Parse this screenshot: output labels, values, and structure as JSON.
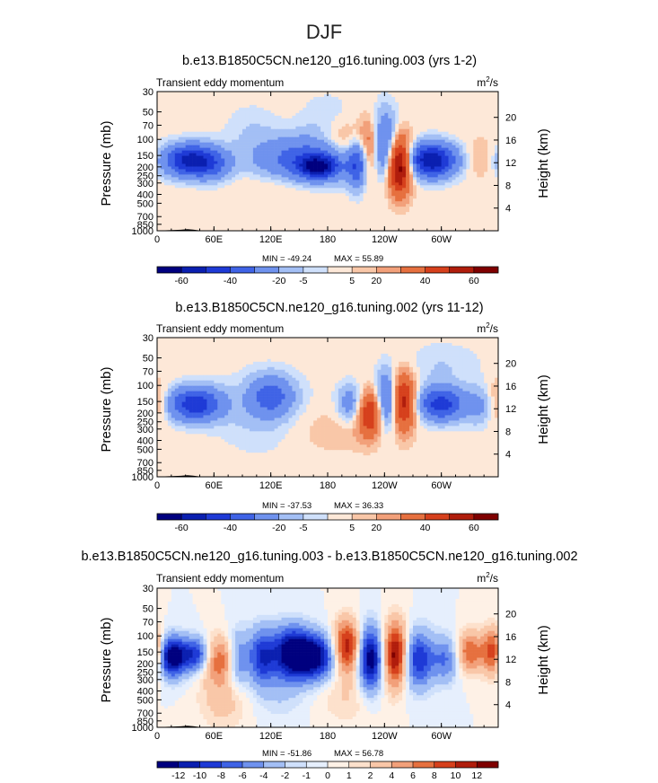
{
  "figure": {
    "title": "DJF"
  },
  "chart_data": [
    {
      "type": "heatmap",
      "title": "b.e13.B1850C5CN.ne120_g16.tuning.003 (yrs 1-2)",
      "subtitle_left": "Transient eddy momentum",
      "units_base": "m",
      "units_exp": "2",
      "units_rest": "/s",
      "ylabel": "Pressure (mb)",
      "ylabel_right": "Height (km)",
      "x_ticks": [
        "0",
        "60E",
        "120E",
        "180",
        "120W",
        "60W"
      ],
      "y_ticks": [
        "30",
        "50",
        "70",
        "100",
        "150",
        "200",
        "250",
        "300",
        "400",
        "500",
        "700",
        "850",
        "1000"
      ],
      "y_ticks_right": [
        "20",
        "16",
        "12",
        "8",
        "4"
      ],
      "min_label": "MIN = -49.24",
      "max_label": "MAX = 55.89",
      "min": -49.24,
      "max": 55.89,
      "levels": [
        "-60",
        "-40",
        "-20",
        "-5",
        "5",
        "20",
        "40",
        "60"
      ],
      "blobs": [
        {
          "lon": 35,
          "p": 170,
          "dlon": 20,
          "dlp": 0.28,
          "a": -45
        },
        {
          "lon": 60,
          "p": 200,
          "dlon": 14,
          "dlp": 0.3,
          "a": -12
        },
        {
          "lon": 160,
          "p": 170,
          "dlon": 42,
          "dlp": 0.42,
          "a": -28
        },
        {
          "lon": 170,
          "p": 200,
          "dlon": 14,
          "dlp": 0.2,
          "a": -38
        },
        {
          "lon": 198,
          "p": 110,
          "dlon": 18,
          "dlp": 0.4,
          "a": 14
        },
        {
          "lon": 212,
          "p": 180,
          "dlon": 7,
          "dlp": 0.45,
          "a": -28
        },
        {
          "lon": 225,
          "p": 140,
          "dlon": 9,
          "dlp": 0.55,
          "a": 24
        },
        {
          "lon": 240,
          "p": 120,
          "dlon": 10,
          "dlp": 0.6,
          "a": -30
        },
        {
          "lon": 255,
          "p": 190,
          "dlon": 9,
          "dlp": 0.5,
          "a": 56
        },
        {
          "lon": 290,
          "p": 170,
          "dlon": 18,
          "dlp": 0.3,
          "a": -49
        },
        {
          "lon": 342,
          "p": 160,
          "dlon": 10,
          "dlp": 0.35,
          "a": 7
        },
        {
          "lon": 130,
          "p": 300,
          "dlon": 40,
          "dlp": 0.35,
          "a": 5
        },
        {
          "lon": 180,
          "p": 60,
          "dlon": 20,
          "dlp": 0.45,
          "a": -5
        },
        {
          "lon": 100,
          "p": 70,
          "dlon": 20,
          "dlp": 0.4,
          "a": -4
        }
      ]
    },
    {
      "type": "heatmap",
      "title": "b.e13.B1850C5CN.ne120_g16.tuning.002 (yrs 11-12)",
      "subtitle_left": "Transient eddy momentum",
      "units_base": "m",
      "units_exp": "2",
      "units_rest": "/s",
      "ylabel": "Pressure (mb)",
      "ylabel_right": "Height (km)",
      "x_ticks": [
        "0",
        "60E",
        "120E",
        "180",
        "120W",
        "60W"
      ],
      "y_ticks": [
        "30",
        "50",
        "70",
        "100",
        "150",
        "200",
        "250",
        "300",
        "400",
        "500",
        "700",
        "850",
        "1000"
      ],
      "y_ticks_right": [
        "20",
        "16",
        "12",
        "8",
        "4"
      ],
      "min_label": "MIN = -37.53",
      "max_label": "MAX =  36.33",
      "min": -37.53,
      "max": 36.33,
      "levels": [
        "-60",
        "-40",
        "-20",
        "-5",
        "5",
        "20",
        "40",
        "60"
      ],
      "blobs": [
        {
          "lon": 40,
          "p": 160,
          "dlon": 20,
          "dlp": 0.3,
          "a": -37
        },
        {
          "lon": 120,
          "p": 130,
          "dlon": 16,
          "dlp": 0.35,
          "a": -22
        },
        {
          "lon": 115,
          "p": 200,
          "dlon": 35,
          "dlp": 0.7,
          "a": -7
        },
        {
          "lon": 205,
          "p": 160,
          "dlon": 10,
          "dlp": 0.35,
          "a": -18
        },
        {
          "lon": 225,
          "p": 200,
          "dlon": 10,
          "dlp": 0.4,
          "a": 32
        },
        {
          "lon": 242,
          "p": 150,
          "dlon": 8,
          "dlp": 0.5,
          "a": -30
        },
        {
          "lon": 260,
          "p": 150,
          "dlon": 9,
          "dlp": 0.5,
          "a": 36
        },
        {
          "lon": 300,
          "p": 160,
          "dlon": 18,
          "dlp": 0.3,
          "a": -35
        },
        {
          "lon": 340,
          "p": 170,
          "dlon": 10,
          "dlp": 0.35,
          "a": -10
        },
        {
          "lon": 0,
          "p": 150,
          "dlon": 8,
          "dlp": 0.4,
          "a": 10
        },
        {
          "lon": 180,
          "p": 300,
          "dlon": 40,
          "dlp": 0.45,
          "a": 5
        },
        {
          "lon": 300,
          "p": 60,
          "dlon": 30,
          "dlp": 0.4,
          "a": -5
        }
      ]
    },
    {
      "type": "heatmap",
      "title": "b.e13.B1850C5CN.ne120_g16.tuning.003 - b.e13.B1850C5CN.ne120_g16.tuning.002",
      "subtitle_left": "Transient eddy momentum",
      "units_base": "m",
      "units_exp": "2",
      "units_rest": "/s",
      "ylabel": "Pressure (mb)",
      "ylabel_right": "Height (km)",
      "x_ticks": [
        "0",
        "60E",
        "120E",
        "180",
        "120W",
        "60W"
      ],
      "y_ticks": [
        "30",
        "50",
        "70",
        "100",
        "150",
        "200",
        "250",
        "300",
        "400",
        "500",
        "700",
        "850",
        "1000"
      ],
      "y_ticks_right": [
        "20",
        "16",
        "12",
        "8",
        "4"
      ],
      "min_label": "MIN = -51.86",
      "max_label": "MAX =  56.78",
      "min": -51.86,
      "max": 56.78,
      "levels": [
        "-12",
        "-10",
        "-8",
        "-6",
        "-4",
        "-2",
        "-1",
        "0",
        "1",
        "2",
        "4",
        "6",
        "8",
        "10",
        "12"
      ],
      "blobs": [
        {
          "lon": 15,
          "p": 170,
          "dlon": 10,
          "dlp": 0.35,
          "a": -14
        },
        {
          "lon": 40,
          "p": 160,
          "dlon": 12,
          "dlp": 0.3,
          "a": -10
        },
        {
          "lon": 65,
          "p": 180,
          "dlon": 12,
          "dlp": 0.4,
          "a": 8
        },
        {
          "lon": 85,
          "p": 180,
          "dlon": 8,
          "dlp": 0.5,
          "a": -6
        },
        {
          "lon": 110,
          "p": 170,
          "dlon": 10,
          "dlp": 0.5,
          "a": -9
        },
        {
          "lon": 140,
          "p": 150,
          "dlon": 14,
          "dlp": 0.45,
          "a": -12
        },
        {
          "lon": 165,
          "p": 170,
          "dlon": 16,
          "dlp": 0.4,
          "a": -14
        },
        {
          "lon": 200,
          "p": 130,
          "dlon": 10,
          "dlp": 0.45,
          "a": 12
        },
        {
          "lon": 225,
          "p": 180,
          "dlon": 9,
          "dlp": 0.55,
          "a": -14
        },
        {
          "lon": 252,
          "p": 160,
          "dlon": 9,
          "dlp": 0.55,
          "a": 14
        },
        {
          "lon": 275,
          "p": 180,
          "dlon": 12,
          "dlp": 0.5,
          "a": -10
        },
        {
          "lon": 305,
          "p": 180,
          "dlon": 10,
          "dlp": 0.4,
          "a": -6
        },
        {
          "lon": 330,
          "p": 150,
          "dlon": 10,
          "dlp": 0.35,
          "a": 8
        },
        {
          "lon": 355,
          "p": 150,
          "dlon": 8,
          "dlp": 0.4,
          "a": 10
        },
        {
          "lon": 70,
          "p": 500,
          "dlon": 18,
          "dlp": 0.5,
          "a": 3
        },
        {
          "lon": 130,
          "p": 400,
          "dlon": 18,
          "dlp": 0.5,
          "a": -2
        },
        {
          "lon": 200,
          "p": 450,
          "dlon": 22,
          "dlp": 0.5,
          "a": 2
        }
      ]
    }
  ],
  "colors": {
    "diverging": [
      "#00007f",
      "#0a1fb0",
      "#1e3ad6",
      "#3f63e6",
      "#6f92ee",
      "#a3bff5",
      "#cfe0fb",
      "#fde8d8",
      "#f9c7a8",
      "#f2a07a",
      "#e6703f",
      "#d6401c",
      "#b01d0c",
      "#7f0000"
    ],
    "diff_scale": [
      "#00007f",
      "#0a1fb0",
      "#1e3ad6",
      "#3f63e6",
      "#6f92ee",
      "#a3bff5",
      "#cfe0fb",
      "#e6effd",
      "#fef1e6",
      "#fde1cc",
      "#f9c7a8",
      "#f2a07a",
      "#e6703f",
      "#d6401c",
      "#b01d0c",
      "#7f0000"
    ],
    "topography": "#000000"
  }
}
